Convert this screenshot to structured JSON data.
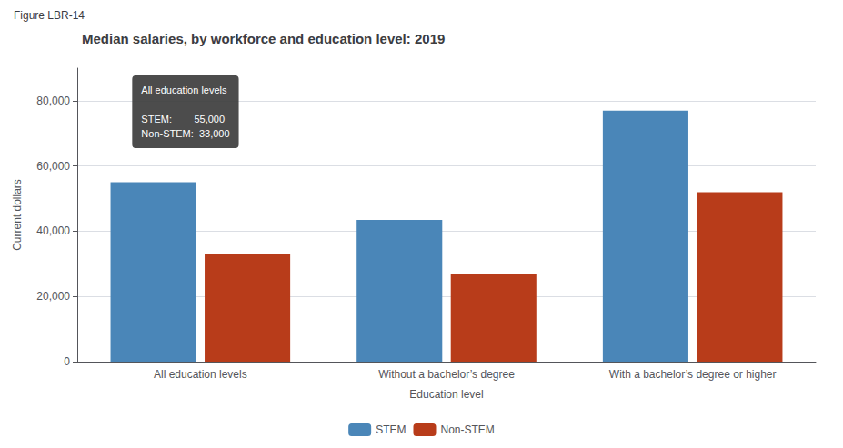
{
  "chart_data": {
    "type": "bar",
    "title": "Median salaries, by workforce and education level: 2019",
    "subtitle": "Figure LBR-14",
    "categories": [
      "All education levels",
      "Without a bachelor’s degree",
      "With a bachelor’s degree or higher"
    ],
    "series": [
      {
        "name": "STEM",
        "color": "#4a86b8",
        "values": [
          55000,
          43500,
          77000
        ]
      },
      {
        "name": "Non-STEM",
        "color": "#b83c1a",
        "values": [
          33000,
          27000,
          52000
        ]
      }
    ],
    "xlabel": "Education level",
    "ylabel": "Current dollars",
    "ylim": [
      0,
      90000
    ],
    "yticks": [
      0,
      {
        "value": 20000,
        "label": "20,000"
      },
      {
        "value": 40000,
        "label": "40,000"
      },
      {
        "value": 60000,
        "label": "60,000"
      },
      {
        "value": 80000,
        "label": "80,000"
      }
    ],
    "grid": true,
    "legend": "bottom",
    "annotations": [
      {
        "text": "All education levels\n\nSTEM:        55,000\nNon-STEM:  33,000",
        "category": "All education levels"
      }
    ]
  }
}
